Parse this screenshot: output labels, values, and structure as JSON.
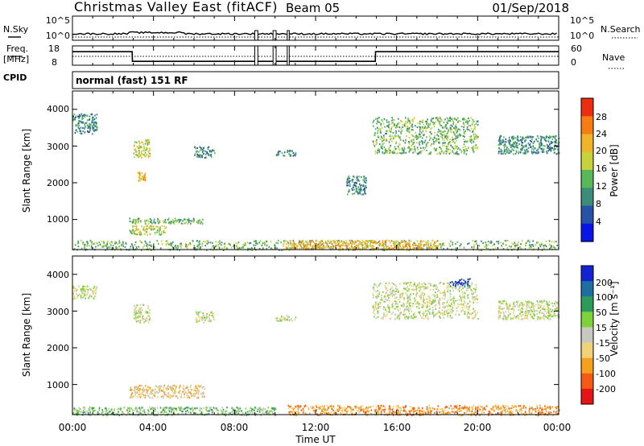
{
  "header": {
    "title": "Christmas Valley East (fitACF)",
    "beam": "Beam 05",
    "date": "01/Sep/2018"
  },
  "nsky_panel": {
    "left_label": "N.Sky",
    "right_label": "N.Search",
    "left_ticks": [
      "10^5",
      "10^0"
    ],
    "right_ticks": [
      "10^5",
      "10^0"
    ]
  },
  "freq_panel": {
    "left_label_line1": "Freq.",
    "left_label_line2": "[MHz]",
    "left_ticks": [
      "18",
      "8"
    ],
    "right_ticks": [
      "60",
      "0"
    ],
    "right_label": "Nave",
    "cpid_label": "CPID"
  },
  "cpid_text": "normal (fast) 151 RF",
  "x_axis": {
    "label": "Time UT",
    "ticks": [
      "00:00",
      "04:00",
      "08:00",
      "12:00",
      "16:00",
      "20:00",
      "00:00"
    ]
  },
  "power_panel": {
    "ylabel": "Slant Range [km]",
    "yticks": [
      "4000",
      "3000",
      "2000",
      "1000"
    ],
    "colorbar_label": "Power [dB]",
    "colorbar_ticks": [
      "28",
      "24",
      "20",
      "16",
      "12",
      "8",
      "4"
    ]
  },
  "velocity_panel": {
    "ylabel": "Slant Range [km]",
    "yticks": [
      "4000",
      "3000",
      "2000",
      "1000"
    ],
    "colorbar_label": "Velocity [m s⁻¹]",
    "colorbar_ticks": [
      "200",
      "100",
      "50",
      "15",
      "-15",
      "-50",
      "-100",
      "-200"
    ]
  },
  "chart_data": [
    {
      "type": "heatmap",
      "name": "power",
      "x_range_hours": [
        0,
        24
      ],
      "y_range_km": [
        180,
        4500
      ],
      "colorbar_range": [
        0,
        32
      ],
      "colorbar_colors": [
        "#0a14e6",
        "#2851a8",
        "#3d8c7a",
        "#59b85a",
        "#c8d23c",
        "#f0b428",
        "#f57d14",
        "#eb2d10"
      ],
      "regions": [
        {
          "x": [
            0.0,
            1.2
          ],
          "y": [
            3350,
            3900
          ],
          "level": 2
        },
        {
          "x": [
            3.0,
            3.8
          ],
          "y": [
            2700,
            3200
          ],
          "level": 4
        },
        {
          "x": [
            3.2,
            3.6
          ],
          "y": [
            2050,
            2300
          ],
          "level": 5
        },
        {
          "x": [
            2.8,
            6.5
          ],
          "y": [
            900,
            1050
          ],
          "level": 3
        },
        {
          "x": [
            2.8,
            4.6
          ],
          "y": [
            600,
            850
          ],
          "level": 4
        },
        {
          "x": [
            6.0,
            7.0
          ],
          "y": [
            2700,
            3000
          ],
          "level": 2
        },
        {
          "x": [
            10.0,
            11.0
          ],
          "y": [
            2750,
            2900
          ],
          "level": 2
        },
        {
          "x": [
            13.5,
            14.5
          ],
          "y": [
            1700,
            2200
          ],
          "level": 2
        },
        {
          "x": [
            14.8,
            20.0
          ],
          "y": [
            2800,
            3800
          ],
          "level": 3
        },
        {
          "x": [
            21.0,
            24.0
          ],
          "y": [
            2800,
            3300
          ],
          "level": 2
        },
        {
          "x": [
            0.0,
            24.0
          ],
          "y": [
            180,
            450
          ],
          "level": 3
        },
        {
          "x": [
            10.5,
            18.0
          ],
          "y": [
            200,
            450
          ],
          "level": 5
        }
      ]
    },
    {
      "type": "heatmap",
      "name": "velocity",
      "x_range_hours": [
        0,
        24
      ],
      "y_range_km": [
        180,
        4500
      ],
      "colorbar_range": [
        -250,
        250
      ],
      "colorbar_colors": [
        "#e61414",
        "#f55a14",
        "#f5a01e",
        "#f0d278",
        "#c8c8c0",
        "#7dd23c",
        "#2d9b5a",
        "#1e6ea0",
        "#1423d2"
      ],
      "regions": [
        {
          "x": [
            0.0,
            1.2
          ],
          "y": [
            3350,
            3700
          ],
          "level": 4
        },
        {
          "x": [
            3.0,
            3.8
          ],
          "y": [
            2700,
            3200
          ],
          "level": 4
        },
        {
          "x": [
            2.8,
            6.5
          ],
          "y": [
            650,
            1000
          ],
          "level": 3
        },
        {
          "x": [
            6.0,
            7.0
          ],
          "y": [
            2700,
            3000
          ],
          "level": 4
        },
        {
          "x": [
            10.0,
            11.0
          ],
          "y": [
            2750,
            2900
          ],
          "level": 4
        },
        {
          "x": [
            14.8,
            20.0
          ],
          "y": [
            2800,
            3800
          ],
          "level": 4
        },
        {
          "x": [
            18.6,
            19.6
          ],
          "y": [
            3700,
            3900
          ],
          "level": 8
        },
        {
          "x": [
            21.0,
            24.0
          ],
          "y": [
            2800,
            3300
          ],
          "level": 4
        },
        {
          "x": [
            0.0,
            10.0
          ],
          "y": [
            180,
            400
          ],
          "level": 5
        },
        {
          "x": [
            10.5,
            24.0
          ],
          "y": [
            180,
            450
          ],
          "level": 2
        }
      ]
    },
    {
      "type": "line",
      "name": "frequency",
      "x": [
        0,
        2.95,
        2.96,
        14.95,
        14.96,
        24
      ],
      "y": [
        15,
        15,
        10,
        10,
        15,
        15
      ],
      "ylim": [
        8,
        18
      ]
    }
  ]
}
